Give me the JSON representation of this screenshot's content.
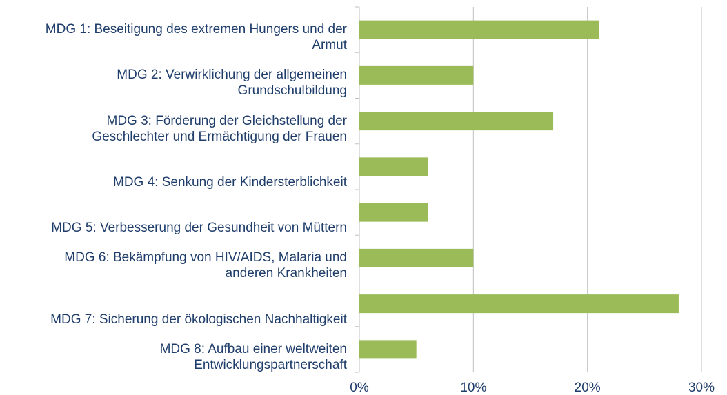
{
  "chart_data": {
    "type": "bar",
    "orientation": "horizontal",
    "categories": [
      "MDG 1: Beseitigung des extremen Hungers und der\nArmut",
      "MDG 2: Verwirklichung der allgemeinen\nGrundschulbildung",
      "MDG 3: Förderung der Gleichstellung der\nGeschlechter und Ermächtigung der Frauen",
      "MDG 4: Senkung der Kindersterblichkeit",
      "MDG 5: Verbesserung der Gesundheit von Müttern",
      "MDG 6: Bekämpfung von HIV/AIDS, Malaria und\nanderen Krankheiten",
      "MDG 7: Sicherung der ökologischen Nachhaltigkeit",
      "MDG 8: Aufbau einer weltweiten\nEntwicklungspartnerschaft"
    ],
    "values": [
      21,
      10,
      17,
      6,
      6,
      10,
      28,
      5
    ],
    "color": "#9bbb59",
    "xlim": [
      0,
      30
    ],
    "xticks": [
      {
        "value": 0,
        "label": "0%"
      },
      {
        "value": 10,
        "label": "10%"
      },
      {
        "value": 20,
        "label": "20%"
      },
      {
        "value": 30,
        "label": "30%"
      }
    ],
    "grid": true
  }
}
